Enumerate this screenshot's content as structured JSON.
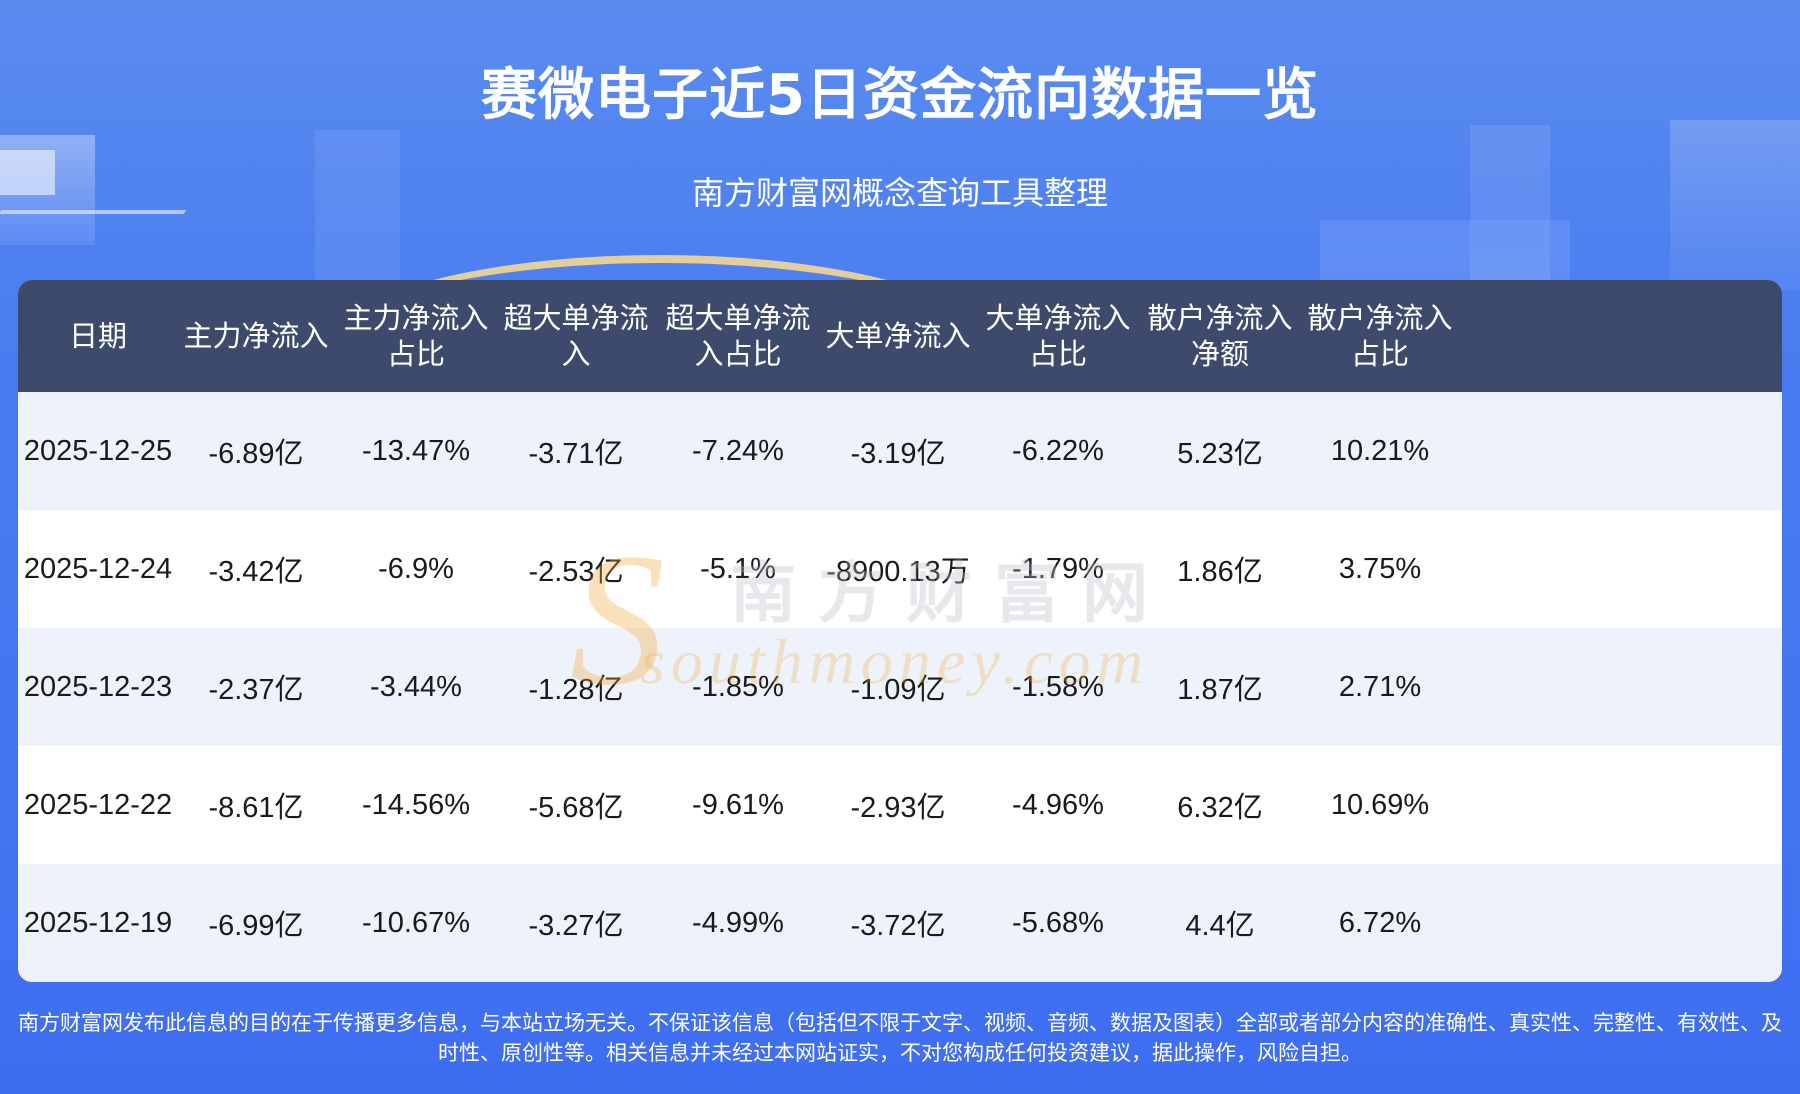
{
  "header": {
    "title": "赛微电子近5日资金流向数据一览",
    "subtitle": "南方财富网概念查询工具整理"
  },
  "table": {
    "columns": [
      "日期",
      "主力净流入",
      "主力净流入\n占比",
      "超大单净流\n入",
      "超大单净流\n入占比",
      "大单净流入",
      "大单净流入\n占比",
      "散户净流入\n净额",
      "散户净流入\n占比"
    ],
    "rows": [
      [
        "2025-12-25",
        "-6.89亿",
        "-13.47%",
        "-3.71亿",
        "-7.24%",
        "-3.19亿",
        "-6.22%",
        "5.23亿",
        "10.21%"
      ],
      [
        "2025-12-24",
        "-3.42亿",
        "-6.9%",
        "-2.53亿",
        "-5.1%",
        "-8900.13万",
        "-1.79%",
        "1.86亿",
        "3.75%"
      ],
      [
        "2025-12-23",
        "-2.37亿",
        "-3.44%",
        "-1.28亿",
        "-1.85%",
        "-1.09亿",
        "-1.58%",
        "1.87亿",
        "2.71%"
      ],
      [
        "2025-12-22",
        "-8.61亿",
        "-14.56%",
        "-5.68亿",
        "-9.61%",
        "-2.93亿",
        "-4.96%",
        "6.32亿",
        "10.69%"
      ],
      [
        "2025-12-19",
        "-6.99亿",
        "-10.67%",
        "-3.27亿",
        "-4.99%",
        "-3.72亿",
        "-5.68%",
        "4.4亿",
        "6.72%"
      ]
    ]
  },
  "watermark": {
    "cn": "南方财富网",
    "en": "southmoney.com"
  },
  "footer": {
    "disclaimer": "南方财富网发布此信息的目的在于传播更多信息，与本站立场无关。不保证该信息（包括但不限于文字、视频、音频、数据及图表）全部或者部分内容的准确性、真实性、完整性、有效性、及时性、原创性等。相关信息并未经过本网站证实，不对您构成任何投资建议，据此操作，风险自担。"
  },
  "colors": {
    "header_row": "#3d4a6c",
    "row_alt": "#eef3fb",
    "background": "#4a7df0"
  }
}
